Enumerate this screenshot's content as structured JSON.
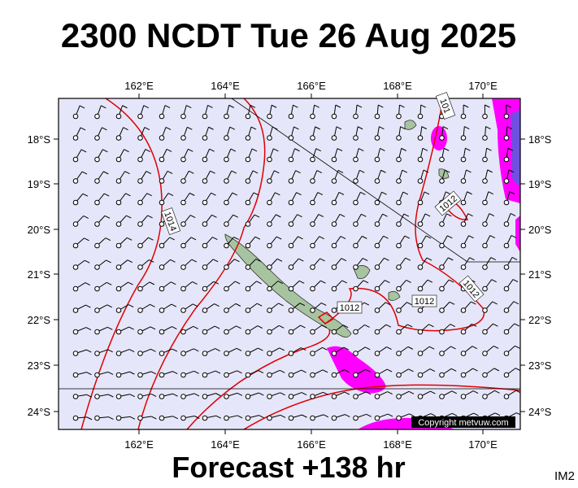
{
  "title": "2300 NCDT Tue 26 Aug 2025",
  "footer": "Forecast +138 hr",
  "image_id": "IM2",
  "map": {
    "lon_labels_top": [
      "162°E",
      "164°E",
      "166°E",
      "168°E",
      "170°E"
    ],
    "lon_labels_bottom": [
      "162°E",
      "164°E",
      "166°E",
      "168°E",
      "170°E"
    ],
    "lat_labels_left": [
      "18°S",
      "19°S",
      "20°S",
      "21°S",
      "22°S",
      "23°S",
      "24°S"
    ],
    "lat_labels_right": [
      "18°S",
      "19°S",
      "20°S",
      "21°S",
      "22°S",
      "23°S",
      "24°S"
    ],
    "isobar_labels": [
      "101",
      "1014",
      "1012",
      "1012",
      "1012",
      "1012"
    ],
    "copyright": "Copyright metvuw.com"
  }
}
